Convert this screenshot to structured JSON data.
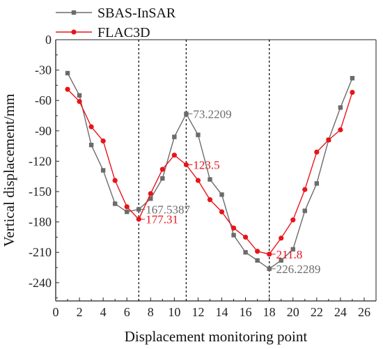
{
  "chart_data": {
    "type": "line",
    "xlabel": "Displacement monitoring point",
    "ylabel": "Vertical displacement/mm",
    "xlim": [
      0,
      27
    ],
    "ylim": [
      -258,
      0
    ],
    "xticks": [
      0,
      2,
      4,
      6,
      8,
      10,
      12,
      14,
      16,
      18,
      20,
      22,
      24,
      26
    ],
    "yticks": [
      0,
      -30,
      -60,
      -90,
      -120,
      -150,
      -180,
      -210,
      -240
    ],
    "legend_position": "top-left",
    "grid": false,
    "vlines": [
      7,
      11,
      18
    ],
    "series": [
      {
        "name": "SBAS-InSAR",
        "color": "#6b6b6b",
        "marker": "square",
        "x": [
          1,
          2,
          3,
          4,
          5,
          6,
          7,
          8,
          9,
          10,
          11,
          12,
          13,
          14,
          15,
          16,
          17,
          18,
          19,
          20,
          21,
          22,
          23,
          24,
          25
        ],
        "y": [
          -33,
          -55,
          -104,
          -129,
          -162,
          -170,
          -167.5387,
          -157,
          -137,
          -96,
          -73.2209,
          -94,
          -138,
          -153,
          -193,
          -210,
          -218,
          -226.2289,
          -218,
          -207,
          -169,
          -142,
          -99,
          -67,
          -38
        ]
      },
      {
        "name": "FLAC3D",
        "color": "#e8141b",
        "marker": "circle",
        "x": [
          1,
          2,
          3,
          4,
          5,
          6,
          7,
          8,
          9,
          10,
          11,
          12,
          13,
          14,
          15,
          16,
          17,
          18,
          19,
          20,
          21,
          22,
          23,
          24,
          25
        ],
        "y": [
          -49,
          -61,
          -86,
          -100,
          -139,
          -165,
          -177.31,
          -152,
          -128,
          -114,
          -123.5,
          -139,
          -158,
          -170,
          -186,
          -195,
          -209,
          -211.8,
          -196,
          -178,
          -148,
          -111,
          -99,
          -89,
          -52
        ]
      }
    ],
    "annotations": [
      {
        "x": 7,
        "y": -167.5387,
        "text": "167.5387",
        "series": 0
      },
      {
        "x": 7,
        "y": -177.31,
        "text": "177.31",
        "series": 1
      },
      {
        "x": 11,
        "y": -73.2209,
        "text": "73.2209",
        "series": 0
      },
      {
        "x": 11,
        "y": -123.5,
        "text": "123.5",
        "series": 1
      },
      {
        "x": 18,
        "y": -211.8,
        "text": "211.8",
        "series": 1
      },
      {
        "x": 18,
        "y": -226.2289,
        "text": "226.2289",
        "series": 0
      }
    ]
  }
}
